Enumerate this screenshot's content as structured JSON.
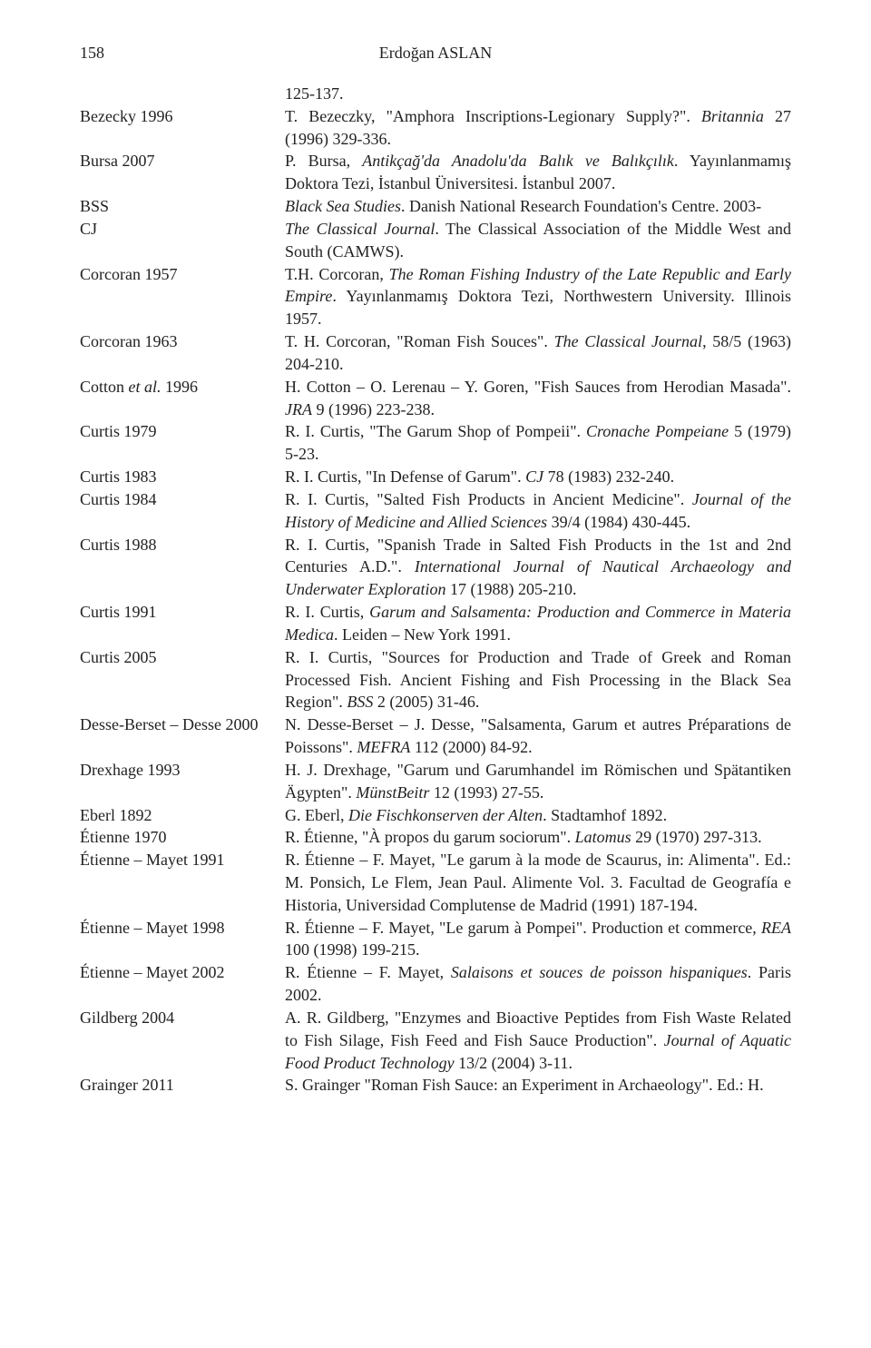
{
  "header": {
    "page_number": "158",
    "author": "Erdoğan ASLAN"
  },
  "lead_fragment": "125-137.",
  "entries": [
    {
      "key": "Bezecky 1996",
      "desc_html": "T. Bezeczky, \"Amphora Inscriptions-Legionary Supply?\". <em>Britannia</em> 27 (1996) 329-336."
    },
    {
      "key": "Bursa 2007",
      "desc_html": "P. Bursa, <em>Antikçağ'da Anadolu'da Balık ve Balıkçılık</em>. Yayınlanmamış Doktora Tezi, İstanbul Üniversitesi. İstanbul 2007."
    },
    {
      "key": "BSS",
      "desc_html": "<em>Black Sea Studies</em>. Danish National Research Foundation's Centre. 2003-"
    },
    {
      "key": "CJ",
      "desc_html": "<em>The Classical Journal</em>. The Classical Association of the Middle West and South (CAMWS)."
    },
    {
      "key": "Corcoran 1957",
      "desc_html": "T.H. Corcoran, <em>The Roman Fishing Industry of the Late Republic and Early Empire</em>. Yayınlanmamış Doktora Tezi, Northwestern University. Illinois 1957."
    },
    {
      "key": "Corcoran 1963",
      "desc_html": "T. H. Corcoran, \"Roman Fish Souces\". <em>The Classical Journal</em>, 58/5 (1963) 204-210."
    },
    {
      "key": "Cotton et al. 1996",
      "key_html": "Cotton <em>et al.</em> 1996",
      "desc_html": "H. Cotton – O. Lerenau – Y. Goren, \"Fish Sauces from Herodian Masada\". <em>JRA</em> 9 (1996) 223-238."
    },
    {
      "key": "Curtis 1979",
      "desc_html": "R. I. Curtis, \"The Garum Shop of Pompeii\". <em>Cronache Pompeiane</em> 5 (1979) 5-23."
    },
    {
      "key": "Curtis 1983",
      "desc_html": "R. I. Curtis, \"In Defense of Garum\". <em>CJ</em> 78 (1983) 232-240."
    },
    {
      "key": "Curtis 1984",
      "desc_html": "R. I. Curtis, \"Salted Fish Products in Ancient Medicine\". <em>Journal of the History of Medicine and Allied Sciences</em> 39/4 (1984) 430-445."
    },
    {
      "key": "Curtis 1988",
      "desc_html": "R. I. Curtis, \"Spanish Trade in Salted Fish Products in the 1st and 2nd Centuries A.D.\". <em>International Journal of Nautical Archaeology and Underwater Exploration</em> 17 (1988) 205-210."
    },
    {
      "key": "Curtis 1991",
      "desc_html": "R. I. Curtis, <em>Garum and Salsamenta: Production and Commerce in Materia Medica</em>. Leiden – New York 1991."
    },
    {
      "key": "Curtis 2005",
      "desc_html": "R. I. Curtis, \"Sources for Production and Trade of Greek and Roman Processed Fish. Ancient Fishing and Fish Processing in the Black Sea Region\". <em>BSS</em> 2 (2005) 31-46."
    },
    {
      "key": "Desse-Berset – Desse 2000",
      "desc_html": "N. Desse-Berset – J. Desse, \"Salsamenta, Garum et autres Préparations de Poissons\". <em>MEFRA</em> 112 (2000) 84-92."
    },
    {
      "key": "Drexhage 1993",
      "desc_html": "H. J. Drexhage, \"Garum und Garumhandel im Römischen und Spätantiken Ägypten\". <em>MünstBeitr</em> 12 (1993) 27-55."
    },
    {
      "key": "Eberl 1892",
      "desc_html": "G. Eberl, <em>Die Fischkonserven der Alten</em>. Stadtamhof 1892."
    },
    {
      "key": "Étienne 1970",
      "desc_html": "R. Étienne, \"À propos du garum sociorum\". <em>Latomus</em> 29 (1970) 297-313."
    },
    {
      "key": "Étienne – Mayet 1991",
      "desc_html": "R. Étienne – F. Mayet, \"Le garum à la mode de Scaurus, in: Alimenta\". Ed.: M. Ponsich, Le Flem, Jean Paul. Alimente Vol. 3. Facultad de Geografía e Historia, Universidad Complutense de Madrid (1991) 187-194."
    },
    {
      "key": "Étienne – Mayet 1998",
      "desc_html": "R. Étienne – F. Mayet, \"Le garum à Pompei\". Production et commerce, <em>REA</em> 100 (1998) 199-215."
    },
    {
      "key": "Étienne – Mayet 2002",
      "desc_html": "R. Étienne – F. Mayet, <em>Salaisons et souces de poisson hispaniques</em>. Paris 2002."
    },
    {
      "key": "Gildberg 2004",
      "desc_html": "A. R. Gildberg, \"Enzymes and Bioactive Peptides from Fish Waste Related to Fish Silage, Fish Feed and Fish Sauce Production\". <em>Journal of Aquatic Food Product Technology</em> 13/2 (2004) 3-11."
    },
    {
      "key": "Grainger 2011",
      "desc_html": "S. Grainger \"Roman Fish Sauce: an Experiment in Archaeology\". Ed.: H."
    }
  ]
}
